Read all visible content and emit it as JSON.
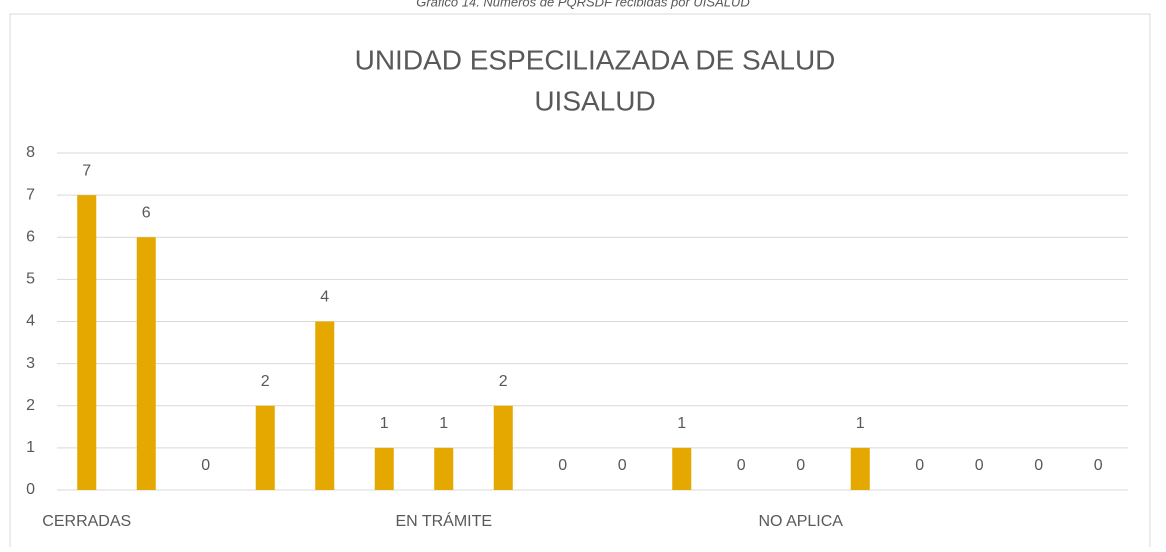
{
  "chart_data": {
    "type": "bar",
    "caption": "Gráfico 14. Números de PQRSDF recibidas por UISALUD",
    "title": [
      "UNIDAD ESPECILIAZADA DE SALUD",
      "UISALUD"
    ],
    "categories": [
      "CERRADAS",
      null,
      null,
      null,
      null,
      null,
      "EN TRÁMITE",
      null,
      null,
      null,
      null,
      null,
      "NO APLICA",
      null,
      null,
      null,
      null,
      null
    ],
    "values": [
      7,
      6,
      0,
      2,
      4,
      1,
      1,
      2,
      0,
      0,
      1,
      0,
      0,
      1,
      0,
      0,
      0,
      0
    ],
    "color": "#e5a800",
    "ylim": [
      0,
      8
    ],
    "yticks": [
      0,
      1,
      2,
      3,
      4,
      5,
      6,
      7,
      8
    ],
    "grid": true
  }
}
